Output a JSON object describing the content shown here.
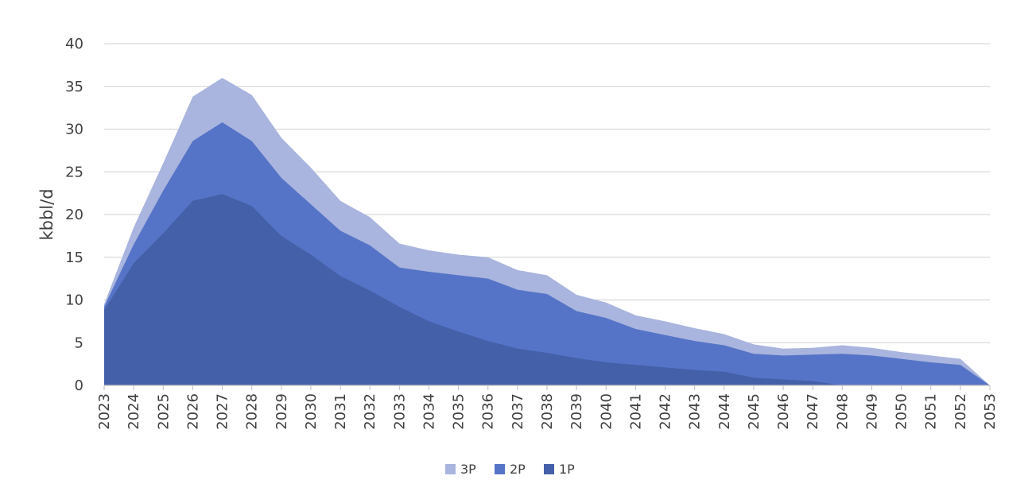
{
  "chart_data": {
    "type": "area",
    "stacked": false,
    "title": "",
    "xlabel": "",
    "ylabel": "kbbl/d",
    "ylim": [
      0,
      40
    ],
    "yticks": [
      0,
      5,
      10,
      15,
      20,
      25,
      30,
      35,
      40
    ],
    "grid": "horizontal",
    "legend_position": "bottom",
    "x": [
      "2023",
      "2024",
      "2025",
      "2026",
      "2027",
      "2028",
      "2029",
      "2030",
      "2031",
      "2032",
      "2033",
      "2034",
      "2035",
      "2036",
      "2037",
      "2038",
      "2039",
      "2040",
      "2041",
      "2042",
      "2043",
      "2044",
      "2045",
      "2046",
      "2047",
      "2048",
      "2049",
      "2050",
      "2051",
      "2052",
      "2053"
    ],
    "series": [
      {
        "name": "3P",
        "color": "#a9b5de",
        "values": [
          9.5,
          18.5,
          26,
          33.8,
          36,
          34,
          29,
          25.5,
          21.6,
          19.7,
          16.6,
          15.8,
          15.3,
          15,
          13.5,
          12.9,
          10.6,
          9.7,
          8.2,
          7.5,
          6.7,
          6,
          4.8,
          4.3,
          4.4,
          4.7,
          4.4,
          3.9,
          3.5,
          3.1,
          0
        ]
      },
      {
        "name": "2P",
        "color": "#5674c7",
        "values": [
          9.2,
          16.5,
          22.8,
          28.6,
          30.8,
          28.6,
          24.3,
          21.2,
          18.1,
          16.4,
          13.8,
          13.3,
          12.9,
          12.5,
          11.2,
          10.7,
          8.7,
          7.9,
          6.6,
          5.9,
          5.2,
          4.7,
          3.7,
          3.5,
          3.6,
          3.7,
          3.5,
          3.1,
          2.7,
          2.4,
          0
        ]
      },
      {
        "name": "1P",
        "color": "#4360a8",
        "values": [
          8.8,
          14.3,
          17.8,
          21.6,
          22.4,
          21,
          17.5,
          15.3,
          12.8,
          11.1,
          9.2,
          7.5,
          6.3,
          5.2,
          4.3,
          3.8,
          3.2,
          2.7,
          2.4,
          2.1,
          1.8,
          1.6,
          0.9,
          0.7,
          0.5,
          0,
          0,
          0,
          0,
          0,
          0
        ]
      }
    ]
  }
}
